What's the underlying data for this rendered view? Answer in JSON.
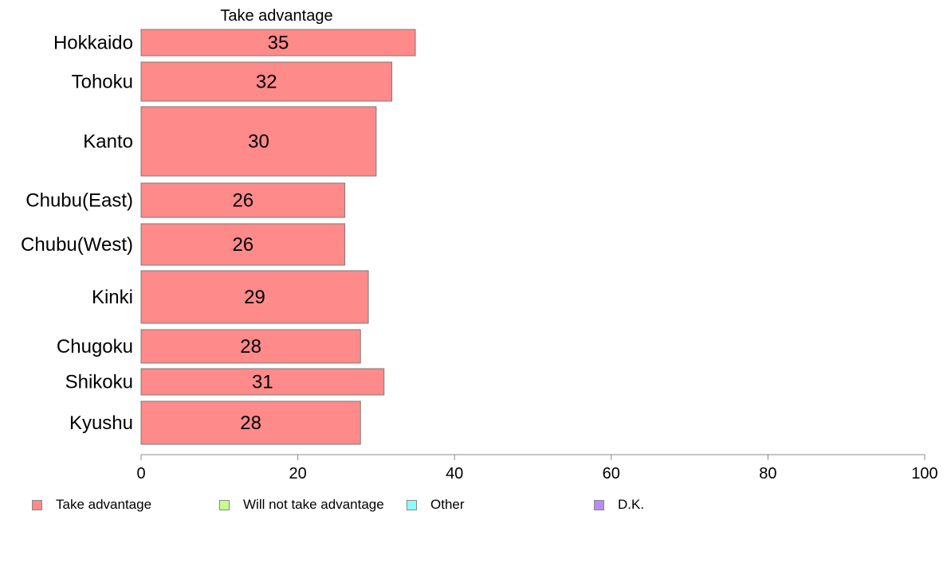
{
  "chart_data": {
    "type": "bar",
    "orientation": "horizontal",
    "title": "Take advantage",
    "categories": [
      "Hokkaido",
      "Tohoku",
      "Kanto",
      "Chubu(East)",
      "Chubu(West)",
      "Kinki",
      "Chugoku",
      "Shikoku",
      "Kyushu"
    ],
    "series": [
      {
        "name": "Take advantage",
        "values": [
          35,
          32,
          30,
          26,
          26,
          29,
          28,
          31,
          28
        ],
        "color": "#ff8a8a"
      }
    ],
    "xlim": [
      0,
      100
    ],
    "xticks": [
      0,
      20,
      40,
      60,
      80,
      100
    ],
    "xlabel": "",
    "ylabel": "",
    "grid": false,
    "legend": {
      "placement": "bottom",
      "entries": [
        {
          "label": "Take advantage",
          "color": "#ff8a8a"
        },
        {
          "label": "Will not take advantage",
          "color": "#c6ff8a"
        },
        {
          "label": "Other",
          "color": "#8affff"
        },
        {
          "label": "D.K.",
          "color": "#b98aff"
        }
      ]
    }
  }
}
